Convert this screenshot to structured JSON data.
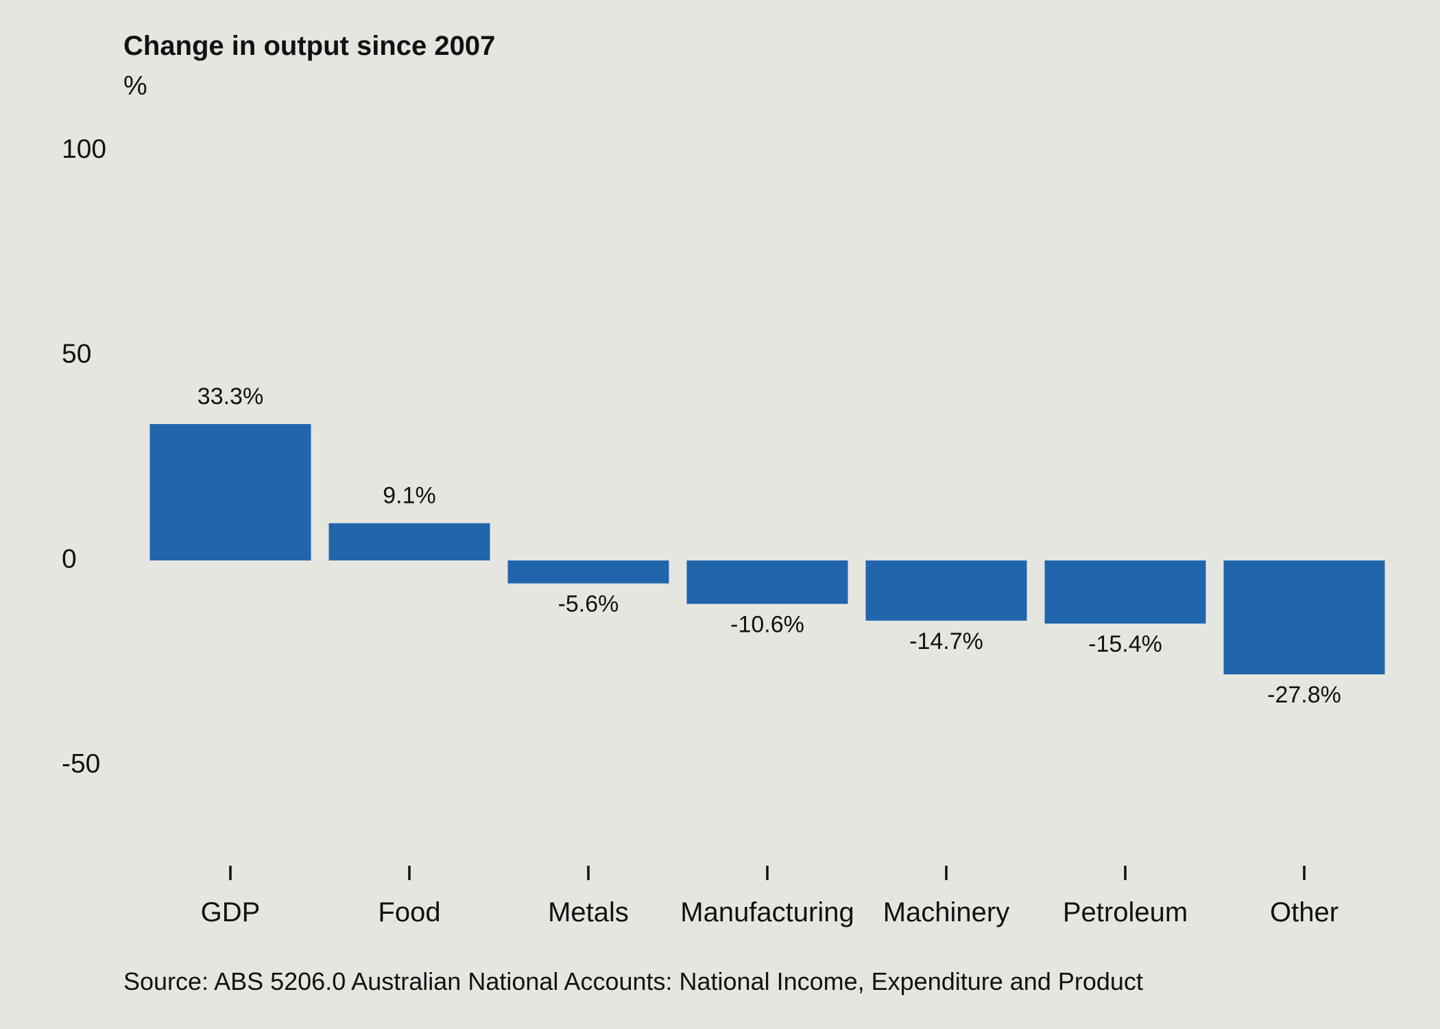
{
  "chart_data": {
    "type": "bar",
    "title": "Change in output since 2007",
    "ylabel": "%",
    "xlabel": "",
    "categories": [
      "GDP",
      "Food",
      "Metals",
      "Manufacturing",
      "Machinery",
      "Petroleum",
      "Other"
    ],
    "values": [
      33.3,
      9.1,
      -5.6,
      -10.6,
      -14.7,
      -15.4,
      -27.8
    ],
    "data_labels": [
      "33.3%",
      "9.1%",
      "-5.6%",
      "-10.6%",
      "-14.7%",
      "-15.4%",
      "-27.8%"
    ],
    "yticks": [
      100,
      50,
      0,
      -50
    ],
    "ytick_labels": [
      "100",
      "50",
      "0",
      "-50"
    ],
    "ylim": [
      -73,
      110
    ],
    "grid": false,
    "legend": "none",
    "bar_color": "#2166ac",
    "background_color": "#e6e6e1",
    "source": "Source: ABS 5206.0 Australian National Accounts: National Income, Expenditure and Product"
  }
}
